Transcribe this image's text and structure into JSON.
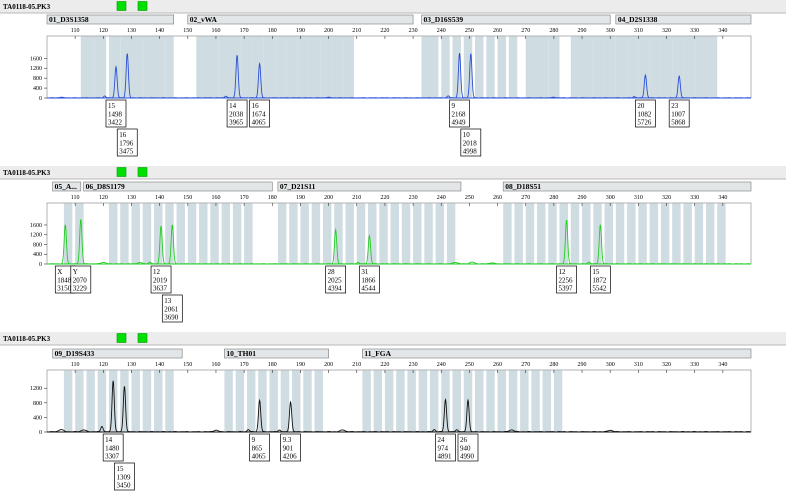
{
  "colors": {
    "bin": "#cfdde3",
    "blue": "#2a4fd6",
    "green": "#22cc22",
    "black": "#111111",
    "panel_header": "#ececec",
    "marker_bar": "#e2e6e8",
    "indicator": "#00e000"
  },
  "chart_data": [
    {
      "type": "line",
      "title": "TA0118-05.PK3",
      "dye_color": "blue",
      "xlim": [
        100,
        350
      ],
      "x_ticks": [
        110,
        120,
        130,
        140,
        150,
        160,
        170,
        180,
        190,
        200,
        210,
        220,
        230,
        240,
        250,
        260,
        270,
        280,
        290,
        300,
        310,
        320,
        330,
        340
      ],
      "ylim": [
        0,
        2500
      ],
      "y_ticks": [
        0,
        400,
        800,
        1200,
        1600
      ],
      "y_tick_labels": [
        "0",
        "400",
        "800",
        "1200",
        "1600"
      ],
      "markers": [
        {
          "name": "01_D3S1358",
          "x_start": 100,
          "x_end": 145
        },
        {
          "name": "02_vWA",
          "x_start": 150,
          "x_end": 230
        },
        {
          "name": "03_D16S539",
          "x_start": 233,
          "x_end": 300
        },
        {
          "name": "04_D2S1338",
          "x_start": 302,
          "x_end": 350
        }
      ],
      "bins": [
        [
          112,
          117
        ],
        [
          117,
          121
        ],
        [
          122,
          126
        ],
        [
          126,
          130
        ],
        [
          130,
          134
        ],
        [
          134,
          138
        ],
        [
          138,
          142
        ],
        [
          142,
          145
        ],
        [
          153,
          157
        ],
        [
          157,
          161
        ],
        [
          161,
          165
        ],
        [
          165,
          169
        ],
        [
          169,
          173
        ],
        [
          173,
          177
        ],
        [
          177,
          181
        ],
        [
          181,
          185
        ],
        [
          185,
          189
        ],
        [
          189,
          193
        ],
        [
          193,
          197
        ],
        [
          197,
          201
        ],
        [
          201,
          205
        ],
        [
          205,
          209
        ],
        [
          233,
          236
        ],
        [
          236,
          239
        ],
        [
          240,
          243
        ],
        [
          244,
          247
        ],
        [
          248,
          251
        ],
        [
          252,
          255
        ],
        [
          256,
          259
        ],
        [
          260,
          263
        ],
        [
          264,
          267
        ],
        [
          270,
          274
        ],
        [
          274,
          278
        ],
        [
          278,
          282
        ],
        [
          286,
          290
        ],
        [
          290,
          294
        ],
        [
          294,
          298
        ],
        [
          298,
          302
        ],
        [
          302,
          306
        ],
        [
          306,
          310
        ],
        [
          310,
          314
        ],
        [
          314,
          318
        ],
        [
          318,
          322
        ],
        [
          322,
          326
        ],
        [
          326,
          330
        ],
        [
          330,
          334
        ],
        [
          334,
          338
        ]
      ],
      "peaks": [
        {
          "x": 124.5,
          "height": 1250,
          "width": 0.4
        },
        {
          "x": 128.5,
          "height": 1780,
          "width": 0.4
        },
        {
          "x": 120.5,
          "height": 70,
          "width": 0.4
        },
        {
          "x": 167.5,
          "height": 1720,
          "width": 0.4
        },
        {
          "x": 175.5,
          "height": 1380,
          "width": 0.4
        },
        {
          "x": 163.5,
          "height": 70,
          "width": 0.4
        },
        {
          "x": 246.5,
          "height": 1800,
          "width": 0.4
        },
        {
          "x": 250.5,
          "height": 1780,
          "width": 0.4
        },
        {
          "x": 242.5,
          "height": 80,
          "width": 0.4
        },
        {
          "x": 312.5,
          "height": 920,
          "width": 0.4
        },
        {
          "x": 324.5,
          "height": 880,
          "width": 0.4
        },
        {
          "x": 308.5,
          "height": 50,
          "width": 0.4
        },
        {
          "x": 105,
          "height": 25,
          "width": 0.6
        },
        {
          "x": 200,
          "height": 20,
          "width": 0.6
        },
        {
          "x": 280,
          "height": 25,
          "width": 0.6
        }
      ],
      "labels": [
        {
          "x": 124.5,
          "row": 0,
          "lines": [
            "15",
            "1498",
            "3422"
          ]
        },
        {
          "x": 128.5,
          "row": 1,
          "lines": [
            "16",
            "1796",
            "3475"
          ]
        },
        {
          "x": 167.5,
          "row": 0,
          "lines": [
            "14",
            "2038",
            "3965"
          ]
        },
        {
          "x": 175.5,
          "row": 0,
          "lines": [
            "16",
            "1674",
            "4065"
          ]
        },
        {
          "x": 246.5,
          "row": 0,
          "lines": [
            "9",
            "2168",
            "4949"
          ]
        },
        {
          "x": 250.5,
          "row": 1,
          "lines": [
            "10",
            "2018",
            "4998"
          ]
        },
        {
          "x": 312.5,
          "row": 0,
          "lines": [
            "20",
            "1082",
            "5726"
          ]
        },
        {
          "x": 324.5,
          "row": 0,
          "lines": [
            "23",
            "1007",
            "5868"
          ]
        }
      ]
    },
    {
      "type": "line",
      "title": "TA0118-05.PK3",
      "dye_color": "green",
      "xlim": [
        100,
        350
      ],
      "x_ticks": [
        110,
        120,
        130,
        140,
        150,
        160,
        170,
        180,
        190,
        200,
        210,
        220,
        230,
        240,
        250,
        260,
        270,
        280,
        290,
        300,
        310,
        320,
        330,
        340
      ],
      "ylim": [
        0,
        2500
      ],
      "y_ticks": [
        0,
        400,
        800,
        1200,
        1600
      ],
      "y_tick_labels": [
        "0",
        "400",
        "800",
        "1200",
        "1600"
      ],
      "markers": [
        {
          "name": "05_A...",
          "x_start": 102,
          "x_end": 112
        },
        {
          "name": "06_D8S1179",
          "x_start": 113,
          "x_end": 180
        },
        {
          "name": "07_D21S11",
          "x_start": 182,
          "x_end": 247
        },
        {
          "name": "08_D18S51",
          "x_start": 262,
          "x_end": 350
        }
      ],
      "bins": [
        [
          106,
          109
        ],
        [
          110,
          113
        ],
        [
          122,
          125
        ],
        [
          126,
          129
        ],
        [
          130,
          133
        ],
        [
          134,
          137
        ],
        [
          138,
          141
        ],
        [
          142,
          145
        ],
        [
          146,
          149
        ],
        [
          150,
          153
        ],
        [
          154,
          157
        ],
        [
          158,
          161
        ],
        [
          162,
          165
        ],
        [
          166,
          169
        ],
        [
          170,
          173
        ],
        [
          182,
          185
        ],
        [
          186,
          189
        ],
        [
          190,
          193
        ],
        [
          194,
          197
        ],
        [
          198,
          201
        ],
        [
          202,
          205
        ],
        [
          206,
          209
        ],
        [
          210,
          213
        ],
        [
          214,
          217
        ],
        [
          218,
          221
        ],
        [
          222,
          225
        ],
        [
          226,
          229
        ],
        [
          230,
          233
        ],
        [
          234,
          237
        ],
        [
          238,
          241
        ],
        [
          242,
          245
        ],
        [
          262,
          265
        ],
        [
          266,
          269
        ],
        [
          270,
          273
        ],
        [
          274,
          277
        ],
        [
          278,
          281
        ],
        [
          282,
          285
        ],
        [
          286,
          289
        ],
        [
          290,
          293
        ],
        [
          294,
          297
        ],
        [
          298,
          301
        ],
        [
          302,
          305
        ],
        [
          306,
          309
        ],
        [
          310,
          313
        ],
        [
          314,
          317
        ],
        [
          318,
          321
        ],
        [
          322,
          325
        ],
        [
          326,
          329
        ],
        [
          330,
          333
        ],
        [
          334,
          337
        ],
        [
          338,
          341
        ]
      ],
      "peaks": [
        {
          "x": 106.5,
          "height": 1600,
          "width": 0.4
        },
        {
          "x": 112,
          "height": 1820,
          "width": 0.4
        },
        {
          "x": 140.5,
          "height": 1550,
          "width": 0.4
        },
        {
          "x": 144.5,
          "height": 1600,
          "width": 0.4
        },
        {
          "x": 136.5,
          "height": 70,
          "width": 0.4
        },
        {
          "x": 202.5,
          "height": 1400,
          "width": 0.4
        },
        {
          "x": 214.5,
          "height": 1150,
          "width": 0.4
        },
        {
          "x": 210.5,
          "height": 60,
          "width": 0.4
        },
        {
          "x": 284.5,
          "height": 1800,
          "width": 0.4
        },
        {
          "x": 296.5,
          "height": 1600,
          "width": 0.4
        },
        {
          "x": 292.5,
          "height": 70,
          "width": 0.4
        },
        {
          "x": 120,
          "height": 60,
          "width": 0.8
        },
        {
          "x": 133,
          "height": 50,
          "width": 0.8
        },
        {
          "x": 245,
          "height": 60,
          "width": 0.8
        },
        {
          "x": 251,
          "height": 70,
          "width": 0.8
        },
        {
          "x": 258,
          "height": 40,
          "width": 0.8
        }
      ],
      "labels": [
        {
          "x": 106.5,
          "row": 0,
          "lines": [
            "X",
            "1848",
            "3150"
          ]
        },
        {
          "x": 112,
          "row": 0,
          "lines": [
            "Y",
            "2070",
            "3229"
          ]
        },
        {
          "x": 140.5,
          "row": 0,
          "lines": [
            "12",
            "2019",
            "3637"
          ]
        },
        {
          "x": 144.5,
          "row": 1,
          "lines": [
            "13",
            "2061",
            "3690"
          ]
        },
        {
          "x": 202.5,
          "row": 0,
          "lines": [
            "28",
            "2025",
            "4394"
          ]
        },
        {
          "x": 214.5,
          "row": 0,
          "lines": [
            "31",
            "1866",
            "4544"
          ]
        },
        {
          "x": 284.5,
          "row": 0,
          "lines": [
            "12",
            "2256",
            "5397"
          ]
        },
        {
          "x": 296.5,
          "row": 0,
          "lines": [
            "15",
            "1872",
            "5542"
          ]
        }
      ]
    },
    {
      "type": "line",
      "title": "TA0118-05.PK3",
      "dye_color": "black",
      "xlim": [
        100,
        350
      ],
      "x_ticks": [
        110,
        120,
        130,
        140,
        150,
        160,
        170,
        180,
        190,
        200,
        210,
        220,
        230,
        240,
        250,
        260,
        270,
        280,
        290,
        300,
        310,
        320,
        330,
        340
      ],
      "ylim": [
        0,
        1700
      ],
      "y_ticks": [
        0,
        400,
        800,
        1200
      ],
      "y_tick_labels": [
        "0",
        "400",
        "800",
        "1200"
      ],
      "markers": [
        {
          "name": "09_D19S433",
          "x_start": 102,
          "x_end": 148
        },
        {
          "name": "10_TH01",
          "x_start": 163,
          "x_end": 200
        },
        {
          "name": "11_FGA",
          "x_start": 212,
          "x_end": 350
        }
      ],
      "bins": [
        [
          106,
          109
        ],
        [
          110,
          113
        ],
        [
          114,
          117
        ],
        [
          118,
          121
        ],
        [
          122,
          125
        ],
        [
          126,
          129
        ],
        [
          130,
          133
        ],
        [
          134,
          137
        ],
        [
          138,
          141
        ],
        [
          142,
          145
        ],
        [
          163,
          166
        ],
        [
          167,
          170
        ],
        [
          171,
          174
        ],
        [
          175,
          178
        ],
        [
          179,
          182
        ],
        [
          183,
          186
        ],
        [
          187,
          190
        ],
        [
          191,
          194
        ],
        [
          195,
          198
        ],
        [
          212,
          215
        ],
        [
          216,
          219
        ],
        [
          220,
          223
        ],
        [
          224,
          227
        ],
        [
          228,
          231
        ],
        [
          232,
          235
        ],
        [
          236,
          239
        ],
        [
          240,
          243
        ],
        [
          244,
          247
        ],
        [
          248,
          251
        ],
        [
          252,
          255
        ],
        [
          256,
          259
        ],
        [
          260,
          263
        ],
        [
          264,
          267
        ],
        [
          268,
          271
        ],
        [
          272,
          275
        ],
        [
          276,
          279
        ],
        [
          280,
          283
        ]
      ],
      "peaks": [
        {
          "x": 123.5,
          "height": 1400,
          "width": 0.4
        },
        {
          "x": 127.5,
          "height": 1250,
          "width": 0.4
        },
        {
          "x": 119.5,
          "height": 150,
          "width": 0.4
        },
        {
          "x": 175.5,
          "height": 860,
          "width": 0.4
        },
        {
          "x": 186.5,
          "height": 820,
          "width": 0.4
        },
        {
          "x": 171.5,
          "height": 60,
          "width": 0.4
        },
        {
          "x": 182.5,
          "height": 50,
          "width": 0.4
        },
        {
          "x": 241.5,
          "height": 880,
          "width": 0.4
        },
        {
          "x": 249.5,
          "height": 870,
          "width": 0.4
        },
        {
          "x": 237.5,
          "height": 60,
          "width": 0.4
        },
        {
          "x": 245.5,
          "height": 60,
          "width": 0.4
        },
        {
          "x": 105,
          "height": 60,
          "width": 0.8
        },
        {
          "x": 113,
          "height": 50,
          "width": 0.8
        },
        {
          "x": 160,
          "height": 40,
          "width": 0.8
        },
        {
          "x": 205,
          "height": 50,
          "width": 0.8
        },
        {
          "x": 265,
          "height": 50,
          "width": 0.8
        },
        {
          "x": 300,
          "height": 40,
          "width": 0.8
        }
      ],
      "labels": [
        {
          "x": 123.5,
          "row": 0,
          "lines": [
            "14",
            "1480",
            "3307"
          ]
        },
        {
          "x": 127.5,
          "row": 1,
          "lines": [
            "15",
            "1309",
            "3450"
          ]
        },
        {
          "x": 175.5,
          "row": 0,
          "lines": [
            "9",
            "865",
            "4065"
          ]
        },
        {
          "x": 186.5,
          "row": 0,
          "lines": [
            "9.3",
            "901",
            "4206"
          ]
        },
        {
          "x": 241.5,
          "row": 0,
          "lines": [
            "24",
            "974",
            "4891"
          ]
        },
        {
          "x": 249.5,
          "row": 0,
          "lines": [
            "26",
            "940",
            "4990"
          ]
        }
      ]
    }
  ]
}
